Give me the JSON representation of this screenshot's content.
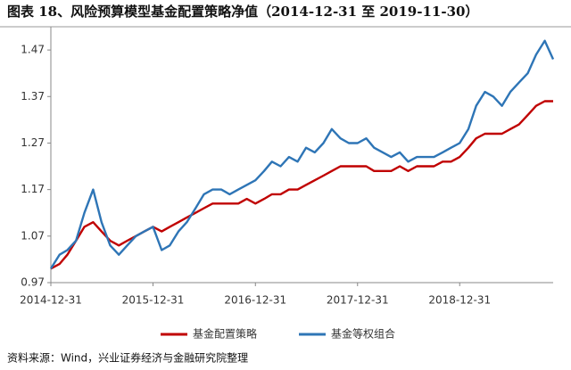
{
  "chart_data": {
    "type": "line",
    "title": "图表 18、风险预算模型基金配置策略净值（2014-12-31 至 2019-11-30）",
    "source": "资料来源：Wind，兴业证券经济与金融研究院整理",
    "x": [
      "2014-12-31",
      "2015-01-31",
      "2015-02-28",
      "2015-03-31",
      "2015-04-30",
      "2015-05-31",
      "2015-06-30",
      "2015-07-31",
      "2015-08-31",
      "2015-09-30",
      "2015-10-31",
      "2015-11-30",
      "2015-12-31",
      "2016-01-31",
      "2016-02-29",
      "2016-03-31",
      "2016-04-30",
      "2016-05-31",
      "2016-06-30",
      "2016-07-31",
      "2016-08-31",
      "2016-09-30",
      "2016-10-31",
      "2016-11-30",
      "2016-12-31",
      "2017-01-31",
      "2017-02-28",
      "2017-03-31",
      "2017-04-30",
      "2017-05-31",
      "2017-06-30",
      "2017-07-31",
      "2017-08-31",
      "2017-09-30",
      "2017-10-31",
      "2017-11-30",
      "2017-12-31",
      "2018-01-31",
      "2018-02-28",
      "2018-03-31",
      "2018-04-30",
      "2018-05-31",
      "2018-06-30",
      "2018-07-31",
      "2018-08-31",
      "2018-09-30",
      "2018-10-31",
      "2018-11-30",
      "2018-12-31",
      "2019-01-31",
      "2019-02-28",
      "2019-03-31",
      "2019-04-30",
      "2019-05-31",
      "2019-06-30",
      "2019-07-31",
      "2019-08-31",
      "2019-09-30",
      "2019-10-31",
      "2019-11-30"
    ],
    "series": [
      {
        "name": "基金配置策略",
        "color": "#c00000",
        "values": [
          1.0,
          1.01,
          1.03,
          1.06,
          1.09,
          1.1,
          1.08,
          1.06,
          1.05,
          1.06,
          1.07,
          1.08,
          1.09,
          1.08,
          1.09,
          1.1,
          1.11,
          1.12,
          1.13,
          1.14,
          1.14,
          1.14,
          1.14,
          1.15,
          1.14,
          1.15,
          1.16,
          1.16,
          1.17,
          1.17,
          1.18,
          1.19,
          1.2,
          1.21,
          1.22,
          1.22,
          1.22,
          1.22,
          1.21,
          1.21,
          1.21,
          1.22,
          1.21,
          1.22,
          1.22,
          1.22,
          1.23,
          1.23,
          1.24,
          1.26,
          1.28,
          1.29,
          1.29,
          1.29,
          1.3,
          1.31,
          1.33,
          1.35,
          1.36,
          1.36
        ]
      },
      {
        "name": "基金等权组合",
        "color": "#2e75b6",
        "values": [
          1.0,
          1.03,
          1.04,
          1.06,
          1.12,
          1.17,
          1.1,
          1.05,
          1.03,
          1.05,
          1.07,
          1.08,
          1.09,
          1.04,
          1.05,
          1.08,
          1.1,
          1.13,
          1.16,
          1.17,
          1.17,
          1.16,
          1.17,
          1.18,
          1.19,
          1.21,
          1.23,
          1.22,
          1.24,
          1.23,
          1.26,
          1.25,
          1.27,
          1.3,
          1.28,
          1.27,
          1.27,
          1.28,
          1.26,
          1.25,
          1.24,
          1.25,
          1.23,
          1.24,
          1.24,
          1.24,
          1.25,
          1.26,
          1.27,
          1.3,
          1.35,
          1.38,
          1.37,
          1.35,
          1.38,
          1.4,
          1.42,
          1.46,
          1.49,
          1.45
        ]
      }
    ],
    "xlim": [
      "2014-12-31",
      "2019-11-30"
    ],
    "xticks": [
      "2014-12-31",
      "2015-12-31",
      "2016-12-31",
      "2017-12-31",
      "2018-12-31"
    ],
    "ylim": [
      0.97,
      1.52
    ],
    "yticks": [
      0.97,
      1.07,
      1.17,
      1.27,
      1.37,
      1.47
    ],
    "legend": "bottom"
  }
}
